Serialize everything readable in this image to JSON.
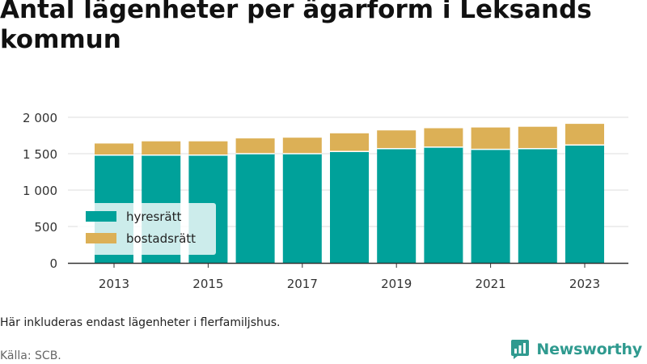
{
  "title": "Antal lägenheter per ägarform i Leksands kommun",
  "note": "Här inkluderas endast lägenheter i flerfamiljshus.",
  "source": "Källa: SCB.",
  "brand": {
    "name": "Newsworthy",
    "icon": "newsworthy-logo-icon"
  },
  "colors": {
    "hyresratt": "#00a19a",
    "bostadsratt": "#dcb056",
    "grid": "#dddddd",
    "axis": "#333333"
  },
  "chart_data": {
    "type": "bar",
    "stacked": true,
    "title": "Antal lägenheter per ägarform i Leksands kommun",
    "xlabel": "",
    "ylabel": "",
    "categories": [
      2013,
      2014,
      2015,
      2016,
      2017,
      2018,
      2019,
      2020,
      2021,
      2022,
      2023
    ],
    "x_tick_labels": [
      "2013",
      "2015",
      "2017",
      "2019",
      "2021",
      "2023"
    ],
    "y_tick_values": [
      0,
      500,
      1000,
      1500,
      2000
    ],
    "y_tick_labels": [
      "0",
      "500",
      "1 000",
      "1 500",
      "2 000"
    ],
    "ylim": [
      0,
      2000
    ],
    "grid": true,
    "legend_position": "bottom-left",
    "series": [
      {
        "name": "hyresrätt",
        "color": "#00a19a",
        "values": [
          1480,
          1480,
          1480,
          1500,
          1500,
          1530,
          1570,
          1590,
          1560,
          1570,
          1620
        ]
      },
      {
        "name": "bostadsrätt",
        "color": "#dcb056",
        "values": [
          160,
          190,
          190,
          210,
          220,
          250,
          250,
          260,
          300,
          300,
          290
        ]
      }
    ]
  }
}
